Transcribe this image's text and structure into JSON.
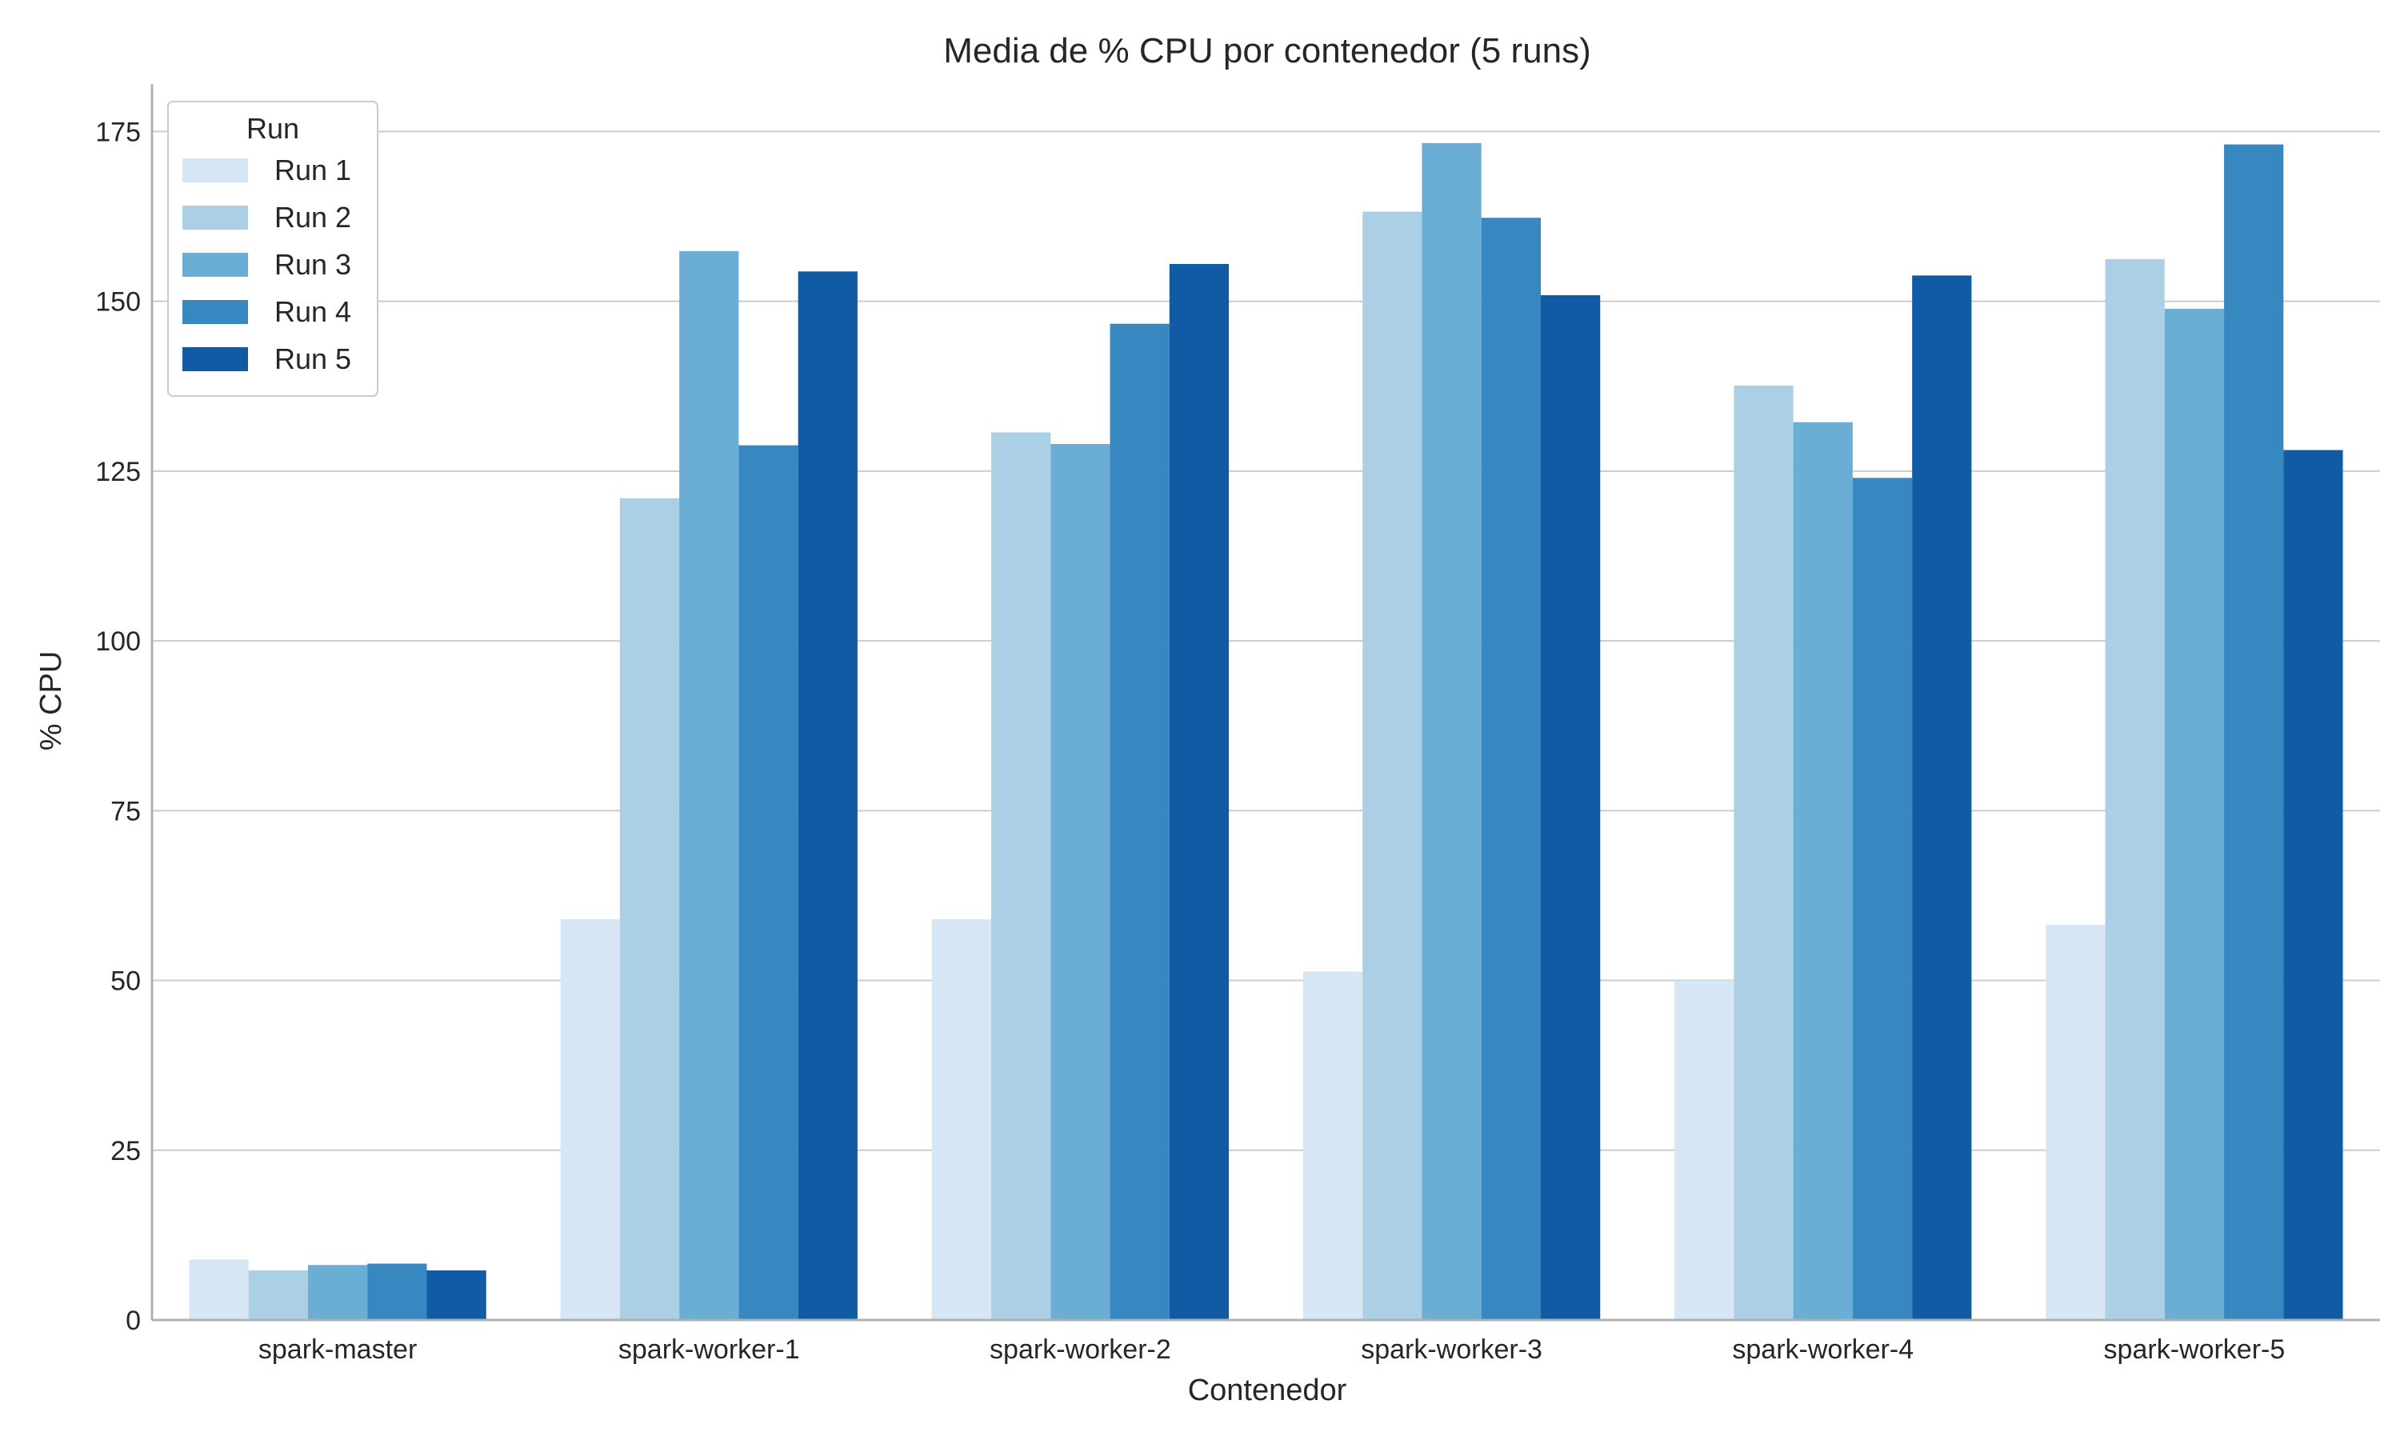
{
  "chart_data": {
    "type": "bar",
    "title": "Media de % CPU por contenedor (5 runs)",
    "xlabel": "Contenedor",
    "ylabel": "% CPU",
    "ylim": [
      0,
      182
    ],
    "yticks": [
      0,
      25,
      50,
      75,
      100,
      125,
      150,
      175
    ],
    "grid": true,
    "categories": [
      "spark-master",
      "spark-worker-1",
      "spark-worker-2",
      "spark-worker-3",
      "spark-worker-4",
      "spark-worker-5"
    ],
    "legend": {
      "title": "Run",
      "placement": "top-left"
    },
    "series": [
      {
        "name": "Run 1",
        "color": "#d6e6f4",
        "values": [
          8.9,
          59.0,
          59.0,
          51.3,
          50.0,
          58.2
        ]
      },
      {
        "name": "Run 2",
        "color": "#abd0e6",
        "values": [
          7.3,
          121.0,
          130.7,
          163.2,
          137.6,
          156.2
        ]
      },
      {
        "name": "Run 3",
        "color": "#6aaed6",
        "values": [
          8.1,
          157.4,
          129.0,
          173.3,
          132.2,
          148.9
        ]
      },
      {
        "name": "Run 4",
        "color": "#3787c0",
        "values": [
          8.3,
          128.8,
          146.7,
          162.3,
          124.0,
          173.1
        ]
      },
      {
        "name": "Run 5",
        "color": "#105ba4",
        "values": [
          7.3,
          154.4,
          155.5,
          150.9,
          153.8,
          128.1
        ]
      }
    ]
  }
}
